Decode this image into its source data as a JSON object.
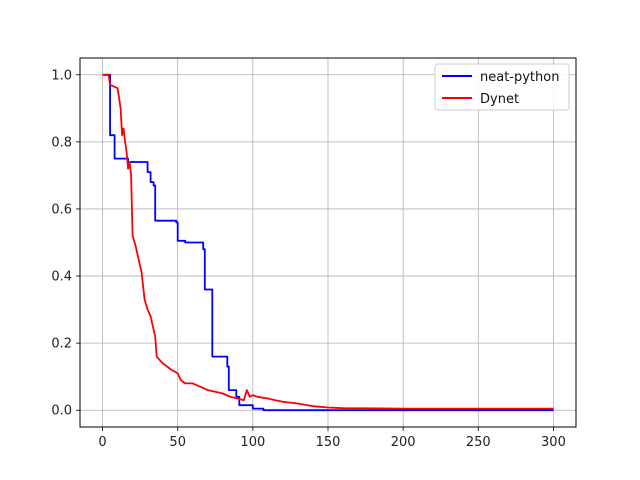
{
  "chart_data": {
    "type": "line",
    "title": "",
    "xlabel": "",
    "ylabel": "",
    "xlim": [
      -15,
      315
    ],
    "ylim": [
      -0.05,
      1.05
    ],
    "xticks": [
      0,
      50,
      100,
      150,
      200,
      250,
      300
    ],
    "yticks": [
      0.0,
      0.2,
      0.4,
      0.6,
      0.8,
      1.0
    ],
    "xtick_labels": [
      "0",
      "50",
      "100",
      "150",
      "200",
      "250",
      "300"
    ],
    "ytick_labels": [
      "0.0",
      "0.2",
      "0.4",
      "0.6",
      "0.8",
      "1.0"
    ],
    "grid": true,
    "legend_position": "top-right",
    "series": [
      {
        "name": "neat-python",
        "color": "#0000ff",
        "step": true,
        "points": [
          [
            0,
            1.0
          ],
          [
            5,
            0.82
          ],
          [
            8,
            0.75
          ],
          [
            17,
            0.74
          ],
          [
            30,
            0.71
          ],
          [
            32,
            0.68
          ],
          [
            34,
            0.67
          ],
          [
            35,
            0.565
          ],
          [
            49,
            0.56
          ],
          [
            50,
            0.505
          ],
          [
            55,
            0.5
          ],
          [
            67,
            0.48
          ],
          [
            68,
            0.36
          ],
          [
            73,
            0.16
          ],
          [
            83,
            0.13
          ],
          [
            84,
            0.06
          ],
          [
            89,
            0.04
          ],
          [
            91,
            0.015
          ],
          [
            100,
            0.005
          ],
          [
            107,
            0.0
          ],
          [
            300,
            0.0
          ]
        ]
      },
      {
        "name": "Dynet",
        "color": "#ff0000",
        "step": false,
        "points": [
          [
            0,
            1.0
          ],
          [
            4,
            1.0
          ],
          [
            5,
            0.97
          ],
          [
            10,
            0.96
          ],
          [
            12,
            0.9
          ],
          [
            13,
            0.82
          ],
          [
            14,
            0.84
          ],
          [
            15,
            0.8
          ],
          [
            16,
            0.77
          ],
          [
            17,
            0.72
          ],
          [
            18,
            0.74
          ],
          [
            19,
            0.7
          ],
          [
            20,
            0.52
          ],
          [
            22,
            0.49
          ],
          [
            24,
            0.45
          ],
          [
            26,
            0.41
          ],
          [
            28,
            0.33
          ],
          [
            30,
            0.3
          ],
          [
            32,
            0.28
          ],
          [
            34,
            0.24
          ],
          [
            35,
            0.22
          ],
          [
            36,
            0.16
          ],
          [
            40,
            0.14
          ],
          [
            43,
            0.13
          ],
          [
            46,
            0.12
          ],
          [
            50,
            0.11
          ],
          [
            52,
            0.09
          ],
          [
            55,
            0.08
          ],
          [
            60,
            0.08
          ],
          [
            65,
            0.07
          ],
          [
            70,
            0.06
          ],
          [
            75,
            0.055
          ],
          [
            80,
            0.05
          ],
          [
            85,
            0.04
          ],
          [
            90,
            0.035
          ],
          [
            94,
            0.03
          ],
          [
            96,
            0.06
          ],
          [
            98,
            0.04
          ],
          [
            100,
            0.045
          ],
          [
            103,
            0.04
          ],
          [
            110,
            0.035
          ],
          [
            115,
            0.03
          ],
          [
            120,
            0.025
          ],
          [
            130,
            0.02
          ],
          [
            140,
            0.012
          ],
          [
            150,
            0.008
          ],
          [
            160,
            0.006
          ],
          [
            200,
            0.005
          ],
          [
            250,
            0.005
          ],
          [
            300,
            0.005
          ]
        ]
      }
    ]
  }
}
